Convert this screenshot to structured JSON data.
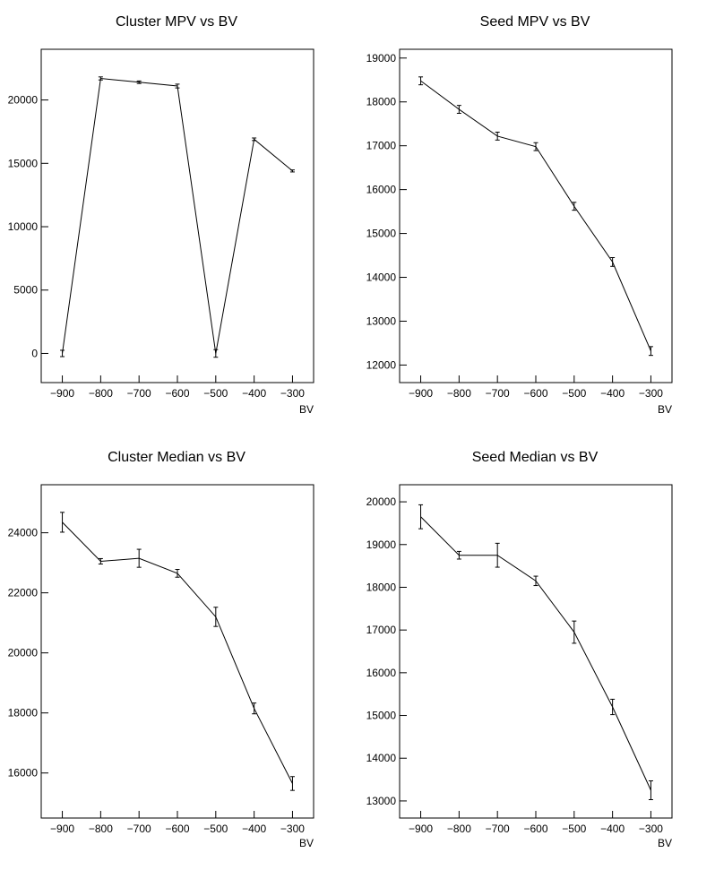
{
  "chart_data": [
    {
      "type": "line",
      "title": "Cluster MPV vs BV",
      "xlabel": "BV",
      "ylabel": "",
      "xlim": [
        -955,
        -245
      ],
      "ylim": [
        -2300,
        24000
      ],
      "x_ticks": [
        -900,
        -800,
        -700,
        -600,
        -500,
        -400,
        -300
      ],
      "x_tick_labels": [
        "−900",
        "−800",
        "−700",
        "−600",
        "−500",
        "−400",
        "−300"
      ],
      "y_ticks": [
        0,
        5000,
        10000,
        15000,
        20000
      ],
      "y_tick_labels": [
        "0",
        "5000",
        "10000",
        "15000",
        "20000"
      ],
      "x": [
        -900,
        -800,
        -700,
        -600,
        -500,
        -400,
        -300
      ],
      "values": [
        0,
        21700,
        21400,
        21100,
        0,
        16900,
        14400
      ],
      "errors": [
        250,
        120,
        100,
        150,
        300,
        100,
        80
      ]
    },
    {
      "type": "line",
      "title": "Seed MPV vs BV",
      "xlabel": "BV",
      "ylabel": "",
      "xlim": [
        -955,
        -245
      ],
      "ylim": [
        11600,
        19200
      ],
      "x_ticks": [
        -900,
        -800,
        -700,
        -600,
        -500,
        -400,
        -300
      ],
      "x_tick_labels": [
        "−900",
        "−800",
        "−700",
        "−600",
        "−500",
        "−400",
        "−300"
      ],
      "y_ticks": [
        12000,
        13000,
        14000,
        15000,
        16000,
        17000,
        18000,
        19000
      ],
      "y_tick_labels": [
        "12000",
        "13000",
        "14000",
        "15000",
        "16000",
        "17000",
        "18000",
        "19000"
      ],
      "x": [
        -900,
        -800,
        -700,
        -600,
        -500,
        -400,
        -300
      ],
      "values": [
        18480,
        17830,
        17220,
        16980,
        15620,
        14350,
        12320
      ],
      "errors": [
        90,
        90,
        90,
        90,
        90,
        100,
        100
      ]
    },
    {
      "type": "line",
      "title": "Cluster Median vs BV",
      "xlabel": "BV",
      "ylabel": "",
      "xlim": [
        -955,
        -245
      ],
      "ylim": [
        14500,
        25600
      ],
      "x_ticks": [
        -900,
        -800,
        -700,
        -600,
        -500,
        -400,
        -300
      ],
      "x_tick_labels": [
        "−900",
        "−800",
        "−700",
        "−600",
        "−500",
        "−400",
        "−300"
      ],
      "y_ticks": [
        16000,
        18000,
        20000,
        22000,
        24000
      ],
      "y_tick_labels": [
        "16000",
        "18000",
        "20000",
        "22000",
        "24000"
      ],
      "x": [
        -900,
        -800,
        -700,
        -600,
        -500,
        -400,
        -300
      ],
      "values": [
        24350,
        23050,
        23150,
        22650,
        21200,
        18150,
        15650
      ],
      "errors": [
        330,
        90,
        300,
        130,
        320,
        180,
        230
      ]
    },
    {
      "type": "line",
      "title": "Seed Median vs BV",
      "xlabel": "BV",
      "ylabel": "",
      "xlim": [
        -955,
        -245
      ],
      "ylim": [
        12600,
        20400
      ],
      "x_ticks": [
        -900,
        -800,
        -700,
        -600,
        -500,
        -400,
        -300
      ],
      "x_tick_labels": [
        "−900",
        "−800",
        "−700",
        "−600",
        "−500",
        "−400",
        "−300"
      ],
      "y_ticks": [
        13000,
        14000,
        15000,
        16000,
        17000,
        18000,
        19000,
        20000
      ],
      "y_tick_labels": [
        "13000",
        "14000",
        "15000",
        "16000",
        "17000",
        "18000",
        "19000",
        "20000"
      ],
      "x": [
        -900,
        -800,
        -700,
        -600,
        -500,
        -400,
        -300
      ],
      "values": [
        19650,
        18750,
        18750,
        18150,
        16950,
        15200,
        13250
      ],
      "errors": [
        280,
        90,
        280,
        110,
        260,
        180,
        220
      ]
    }
  ]
}
